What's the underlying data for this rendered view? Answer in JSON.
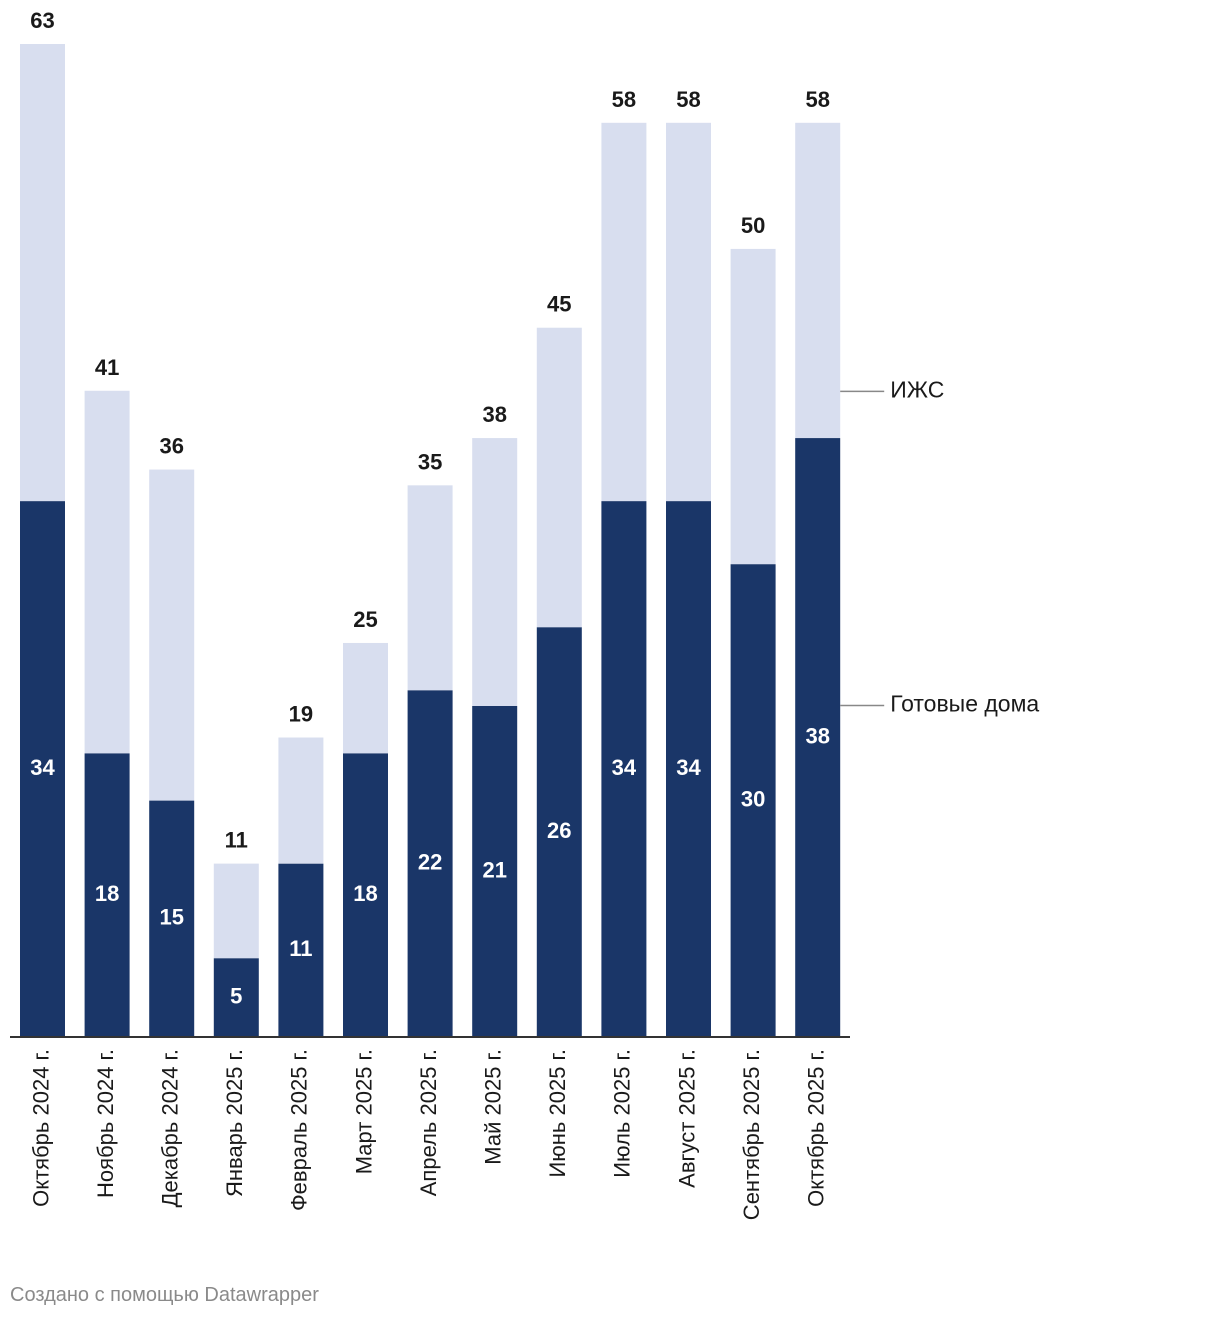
{
  "chart_data": {
    "type": "bar",
    "stacked": true,
    "categories": [
      "Октябрь 2024 г.",
      "Ноябрь 2024 г.",
      "Декабрь 2024 г.",
      "Январь 2025 г.",
      "Февраль 2025 г.",
      "Март 2025 г.",
      "Апрель 2025 г.",
      "Май 2025 г.",
      "Июнь 2025 г.",
      "Июль 2025 г.",
      "Август 2025 г.",
      "Сентябрь 2025 г.",
      "Октябрь 2025 г."
    ],
    "series": [
      {
        "name": "Готовые дома",
        "values": [
          34,
          18,
          15,
          5,
          11,
          18,
          22,
          21,
          26,
          34,
          34,
          30,
          38
        ],
        "color": "#1a3668"
      },
      {
        "name": "ИЖС",
        "values": [
          29,
          23,
          21,
          6,
          8,
          7,
          13,
          17,
          19,
          24,
          24,
          20,
          20
        ],
        "color": "#d8deef"
      }
    ],
    "totals": [
      63,
      41,
      36,
      11,
      19,
      25,
      35,
      38,
      45,
      58,
      58,
      50,
      58
    ],
    "ylim": [
      0,
      63
    ],
    "title": "",
    "xlabel": "",
    "ylabel": "",
    "grid": false,
    "legend": "direct labels right"
  },
  "credit": "Создано с помощью Datawrapper"
}
